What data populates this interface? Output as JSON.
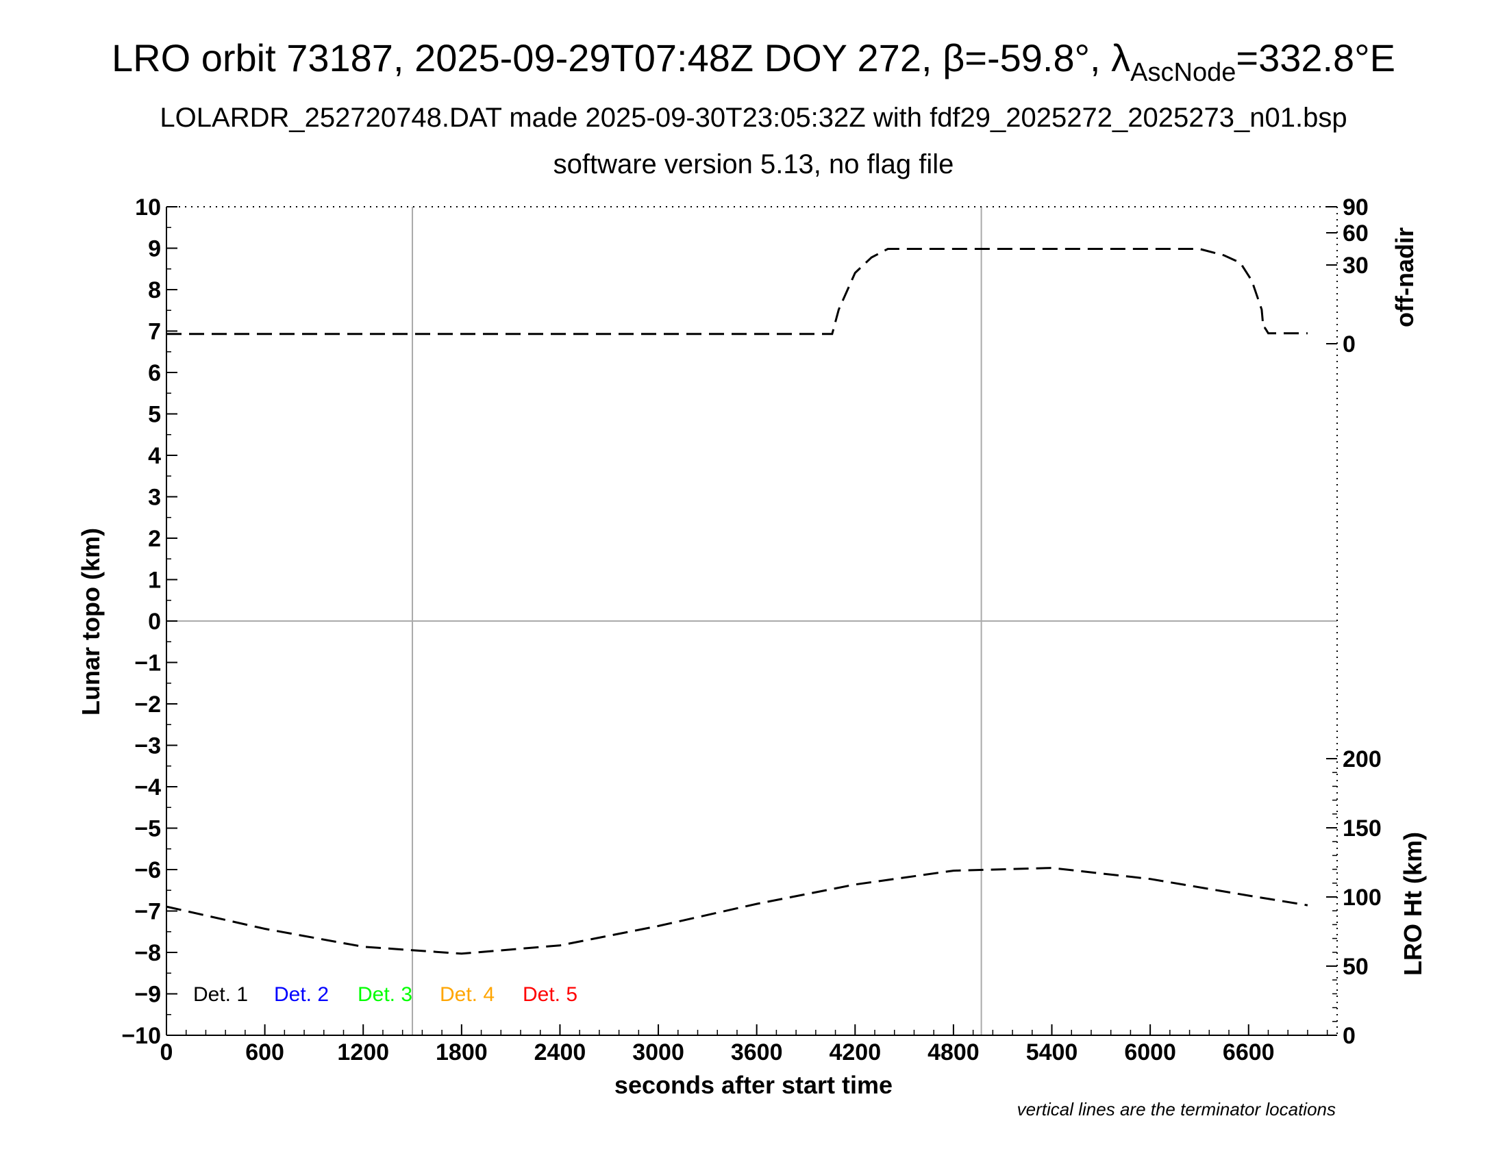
{
  "title": {
    "main_prefix": "LRO orbit 73187, 2025-09-29T07:48Z DOY 272, β=-59.8°, λ",
    "main_sub": "AscNode",
    "main_suffix": "=332.8°E",
    "subtitle": "LOLARDR_252720748.DAT made 2025-09-30T23:05:32Z with fdf29_2025272_2025273_n01.bsp",
    "version": "software version 5.13, no flag file"
  },
  "footnote": "vertical lines are the terminator locations",
  "chart_data": {
    "type": "line",
    "xlabel": "seconds after start time",
    "ylabel_left": "Lunar topo (km)",
    "ylabel_right_top": "off-nadir",
    "ylabel_right_bottom": "LRO Ht (km)",
    "xlim": [
      0,
      7140
    ],
    "ylim_left": [
      -10,
      10
    ],
    "x_ticks": [
      0,
      600,
      1200,
      1800,
      2400,
      3000,
      3600,
      4200,
      4800,
      5400,
      6000,
      6600
    ],
    "y_ticks_left": [
      10,
      9,
      8,
      7,
      6,
      5,
      4,
      3,
      2,
      1,
      0,
      -1,
      -2,
      -3,
      -4,
      -5,
      -6,
      -7,
      -8,
      -9,
      -10
    ],
    "right_top_ticks": [
      0,
      30,
      60,
      90
    ],
    "right_bottom_ticks": [
      0,
      50,
      100,
      150,
      200
    ],
    "terminator_lines_x": [
      1500,
      4970
    ],
    "legend": [
      {
        "label": "Det. 1",
        "color": "#000000"
      },
      {
        "label": "Det. 2",
        "color": "#0000ff"
      },
      {
        "label": "Det. 3",
        "color": "#00ff00"
      },
      {
        "label": "Det. 4",
        "color": "#ffa500"
      },
      {
        "label": "Det. 5",
        "color": "#ff0000"
      }
    ],
    "series": [
      {
        "name": "off-nadir",
        "axis": "right_top",
        "x": [
          0,
          1500,
          3000,
          4050,
          4060,
          4100,
          4200,
          4300,
          4400,
          5000,
          6000,
          6300,
          6450,
          6550,
          6620,
          6680,
          6690,
          6700,
          6720,
          6800,
          6960
        ],
        "y": [
          3.7,
          3.7,
          3.7,
          3.7,
          3.7,
          13,
          27,
          37,
          45,
          45,
          45,
          45,
          39,
          32,
          24,
          13,
          6,
          6,
          4,
          4,
          4
        ]
      },
      {
        "name": "LRO Ht",
        "axis": "right_bottom",
        "x": [
          0,
          600,
          1200,
          1800,
          2400,
          3000,
          3600,
          4200,
          4800,
          5400,
          6000,
          6600,
          6960
        ],
        "y": [
          93,
          77,
          64,
          59,
          65,
          79,
          95,
          109,
          119,
          121,
          113,
          101,
          94
        ]
      }
    ]
  }
}
